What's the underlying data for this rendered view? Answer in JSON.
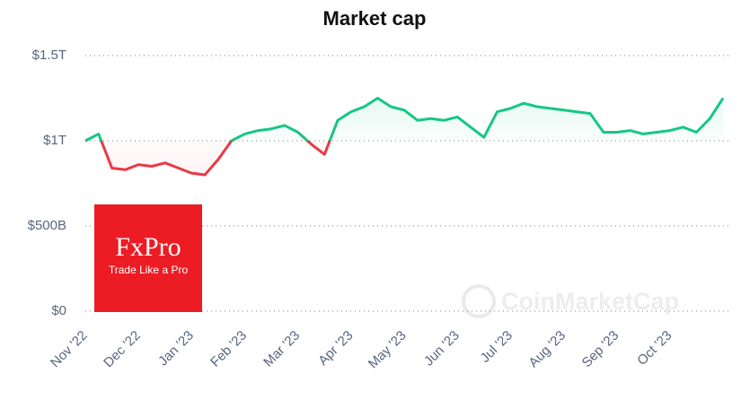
{
  "chart_data": {
    "type": "line",
    "title": "Market cap",
    "categories": [
      "Nov '22",
      null,
      null,
      null,
      "Dec '22",
      null,
      null,
      null,
      "Jan '23",
      null,
      null,
      null,
      "Feb '23",
      null,
      null,
      null,
      "Mar '23",
      null,
      null,
      null,
      "Apr '23",
      null,
      null,
      null,
      "May '23",
      null,
      null,
      null,
      "Jun '23",
      null,
      null,
      null,
      "Jul '23",
      null,
      null,
      null,
      "Aug '23",
      null,
      null,
      null,
      "Sep '23",
      null,
      null,
      null,
      "Oct '23",
      null,
      null,
      null,
      null
    ],
    "values": [
      1.0,
      1.04,
      0.84,
      0.83,
      0.86,
      0.85,
      0.87,
      0.84,
      0.81,
      0.8,
      0.89,
      1.0,
      1.04,
      1.06,
      1.07,
      1.09,
      1.05,
      0.98,
      0.92,
      1.12,
      1.17,
      1.2,
      1.25,
      1.2,
      1.18,
      1.12,
      1.13,
      1.12,
      1.14,
      1.08,
      1.02,
      1.17,
      1.19,
      1.22,
      1.2,
      1.19,
      1.18,
      1.17,
      1.16,
      1.05,
      1.05,
      1.06,
      1.04,
      1.05,
      1.06,
      1.08,
      1.05,
      1.13,
      1.25
    ],
    "color_up": "#16c784",
    "color_down": "#ea3943",
    "ylim": [
      0,
      1.5
    ],
    "yticks": [
      {
        "value": 0,
        "label": "$0"
      },
      {
        "value": 0.5,
        "label": "$500B"
      },
      {
        "value": 1,
        "label": "$1T"
      },
      {
        "value": 1.5,
        "label": "$1.5T"
      }
    ],
    "grid": true,
    "watermark": "CoinMarketCap",
    "ad": {
      "brand": "FxPro",
      "tagline": "Trade Like a Pro"
    }
  }
}
